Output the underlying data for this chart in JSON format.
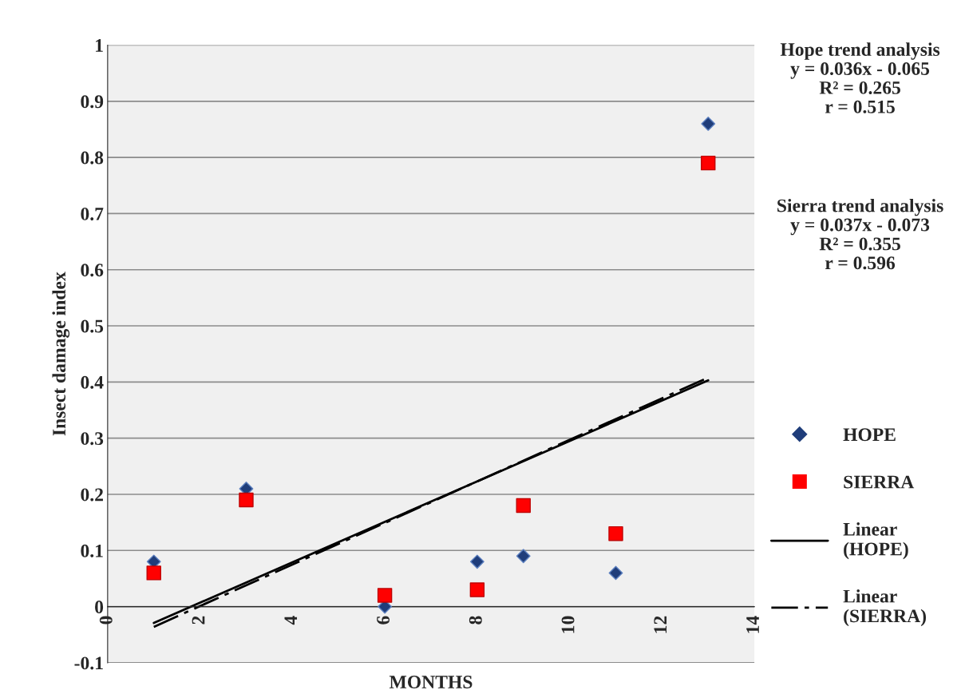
{
  "chart_data": {
    "type": "scatter",
    "xlabel": "MONTHS",
    "ylabel": "Insect damage index",
    "xlim": [
      0,
      14
    ],
    "xticks": [
      0,
      2,
      4,
      6,
      8,
      10,
      12,
      14
    ],
    "ylim": [
      -0.1,
      1
    ],
    "yticks": [
      -0.1,
      0,
      0.1,
      0.2,
      0.3,
      0.4,
      0.5,
      0.6,
      0.7,
      0.8,
      0.9,
      1
    ],
    "grid": "y",
    "legend": "right",
    "series": [
      {
        "name": "HOPE",
        "marker": "diamond",
        "color": "#1f3d7a",
        "x": [
          1,
          3,
          6,
          8,
          9,
          11,
          13
        ],
        "values": [
          0.08,
          0.21,
          0.0,
          0.08,
          0.09,
          0.06,
          0.86
        ]
      },
      {
        "name": "SIERRA",
        "marker": "square",
        "color": "#ff0000",
        "x": [
          1,
          3,
          6,
          8,
          9,
          11,
          13
        ],
        "values": [
          0.06,
          0.19,
          0.02,
          0.03,
          0.18,
          0.13,
          0.79
        ]
      },
      {
        "name": "Linear\n(HOPE)",
        "type": "line",
        "line_style": "solid",
        "color": "#000000",
        "x": [
          1,
          13
        ],
        "values": [
          -0.029,
          0.403
        ]
      },
      {
        "name": "Linear\n(SIERRA)",
        "type": "line",
        "line_style": "dashdot",
        "color": "#000000",
        "x": [
          1,
          13
        ],
        "values": [
          -0.036,
          0.408
        ]
      }
    ],
    "annotations": [
      "Hope trend analysis\ny = 0.036x - 0.065\nR² = 0.265\nr = 0.515",
      "Sierra trend analysis\ny = 0.037x - 0.073\nR² = 0.355\nr = 0.596"
    ]
  }
}
